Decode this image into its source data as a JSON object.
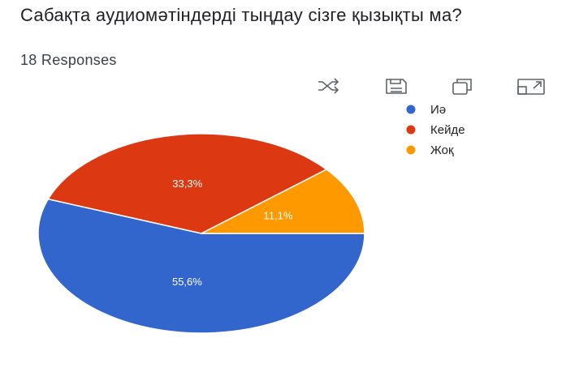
{
  "chart_data": {
    "type": "pie",
    "title": "Сабақта аудиомәтіндерді тыңдау сізге қызықты ма?",
    "subtitle": "18 Responses",
    "categories": [
      "Иә",
      "Кейде",
      "Жоқ"
    ],
    "values": [
      55.6,
      33.3,
      11.1
    ],
    "value_labels": [
      "55,6%",
      "33,3%",
      "11,1%"
    ],
    "colors": [
      "#3366cc",
      "#dc3912",
      "#ff9900"
    ],
    "legend": "right"
  }
}
